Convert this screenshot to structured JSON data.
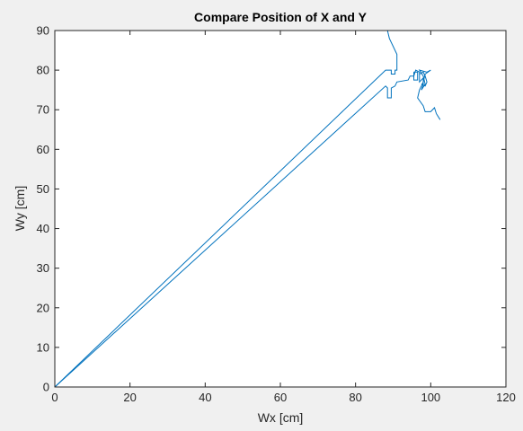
{
  "chart_data": {
    "type": "line",
    "title": "Compare Position of X and Y",
    "xlabel": "Wx [cm]",
    "ylabel": "Wy [cm]",
    "xlim": [
      0,
      120
    ],
    "ylim": [
      0,
      90
    ],
    "xticks": [
      0,
      20,
      40,
      60,
      80,
      100,
      120
    ],
    "yticks": [
      0,
      10,
      20,
      30,
      40,
      50,
      60,
      70,
      80,
      90
    ],
    "grid": false,
    "line_color": "#0072BD",
    "series": [
      {
        "points": [
          [
            0,
            0
          ],
          [
            88,
            80
          ],
          [
            89.5,
            80
          ],
          [
            89.5,
            79
          ],
          [
            90.5,
            79
          ],
          [
            90.5,
            80
          ],
          [
            91,
            80
          ],
          [
            91,
            84
          ],
          [
            90,
            86
          ],
          [
            89,
            88
          ],
          [
            88.5,
            90
          ]
        ]
      },
      {
        "points": [
          [
            0,
            0
          ],
          [
            88,
            76
          ],
          [
            88.5,
            75.5
          ],
          [
            88.5,
            73
          ],
          [
            89.5,
            73
          ],
          [
            89.5,
            75.5
          ],
          [
            90.5,
            76
          ],
          [
            91,
            77
          ],
          [
            94,
            77.5
          ],
          [
            94.5,
            78.5
          ],
          [
            95.5,
            78.5
          ],
          [
            96,
            80
          ],
          [
            97,
            79.5
          ],
          [
            97,
            77
          ],
          [
            98,
            78
          ],
          [
            98,
            76.5
          ],
          [
            97.5,
            75
          ],
          [
            98.5,
            76.5
          ],
          [
            98,
            78.5
          ],
          [
            97,
            80
          ],
          [
            99,
            79.5
          ],
          [
            100,
            80
          ],
          [
            98.5,
            79
          ],
          [
            98,
            77
          ],
          [
            97,
            75
          ],
          [
            96.5,
            73
          ],
          [
            98,
            71
          ],
          [
            98.5,
            69.5
          ],
          [
            100,
            69.5
          ],
          [
            101,
            70.5
          ],
          [
            101.5,
            69
          ],
          [
            102.5,
            67.5
          ]
        ]
      },
      {
        "points": [
          [
            95.5,
            79.5
          ],
          [
            96.5,
            79.5
          ],
          [
            96.5,
            77.5
          ],
          [
            95.5,
            77.5
          ],
          [
            95.5,
            79.5
          ]
        ]
      },
      {
        "points": [
          [
            97,
            79
          ],
          [
            98,
            79.5
          ],
          [
            98.5,
            78.5
          ],
          [
            99,
            77
          ],
          [
            98.5,
            76
          ],
          [
            97.5,
            76.5
          ]
        ]
      }
    ]
  }
}
